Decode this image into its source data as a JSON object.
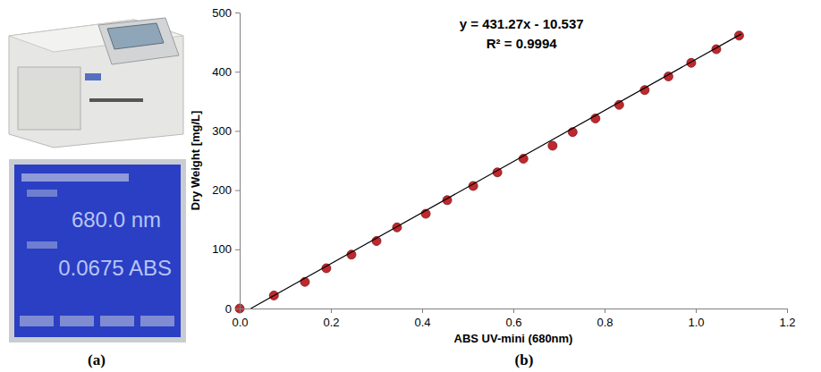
{
  "panel_labels": [
    "(a)",
    "(b)"
  ],
  "screen": {
    "wavelength": "680.0 nm",
    "reading": "0.0675 ABS"
  },
  "chart_data": {
    "type": "scatter",
    "x_label": "ABS UV-mini (680nm)",
    "y_label": "Dry Weight [mg/L]",
    "annotations": [
      "y = 431.27x - 10.537",
      "R² = 0.9994"
    ],
    "xlim": [
      0,
      1.2
    ],
    "xticks": [
      {
        "value": 0,
        "label": "0.0"
      },
      0.2,
      0.4,
      0.6,
      0.8,
      {
        "value": 1,
        "label": "1.0"
      },
      1.2
    ],
    "ylim": [
      0,
      500
    ],
    "yticks": [
      0,
      100,
      200,
      300,
      400,
      500
    ],
    "grid": false,
    "series": [
      {
        "type": "scatter",
        "color": "#c0282d",
        "marker": "circle",
        "x": [
          0,
          0.075,
          0.143,
          0.19,
          0.245,
          0.3,
          0.345,
          0.408,
          0.455,
          0.512,
          0.565,
          0.622,
          0.686,
          0.73,
          0.78,
          0.832,
          0.888,
          0.94,
          0.99,
          1.045,
          1.095
        ],
        "values": [
          0,
          22,
          45,
          68,
          91,
          114,
          137,
          160,
          183,
          207,
          230,
          253,
          275,
          298,
          321,
          344,
          369,
          392,
          415,
          438,
          461
        ]
      },
      {
        "type": "line",
        "color": "#000000",
        "line_style": "solid",
        "x": [
          0.0244,
          1.1
        ],
        "values": [
          0,
          463.9
        ]
      }
    ]
  }
}
